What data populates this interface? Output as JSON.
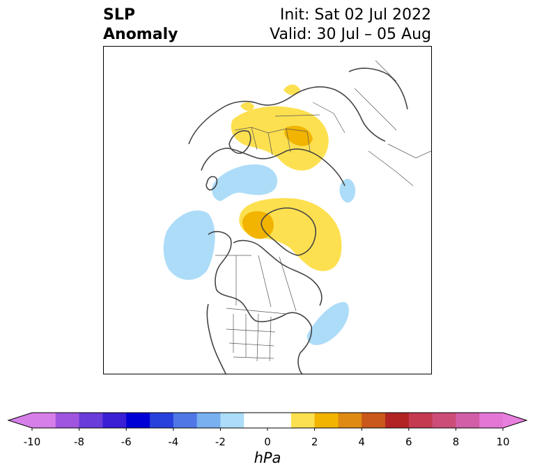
{
  "title": {
    "line1": "SLP",
    "line2": "Anomaly"
  },
  "init": "Init: Sat 02 Jul 2022",
  "valid": "Valid: 30 Jul – 05 Aug",
  "colorbar": {
    "units": "hPa",
    "ticks": [
      "-10",
      "-8",
      "-6",
      "-4",
      "-2",
      "0",
      "2",
      "4",
      "6",
      "8",
      "10"
    ],
    "low_extend_color": "#d67fe8",
    "high_extend_color": "#e77fdf",
    "bins": [
      "#d67fe8",
      "#9f55e0",
      "#6a3cd9",
      "#3a1fd5",
      "#0000d6",
      "#2840dc",
      "#4f78e6",
      "#78b0f0",
      "#acdcf8",
      "#ffffff",
      "#ffffff",
      "#fde050",
      "#f2b400",
      "#df8a12",
      "#c9581a",
      "#b22424",
      "#c43a50",
      "#cc4d78",
      "#d25ea8",
      "#e477d6"
    ]
  },
  "map": {
    "projection": "north-polar-stereographic",
    "anomaly_colors": {
      "neg2": "#acdcf8",
      "pos2": "#fde050",
      "pos4": "#f2b400"
    },
    "coastline_color": "#444444",
    "border_color": "#555555"
  }
}
